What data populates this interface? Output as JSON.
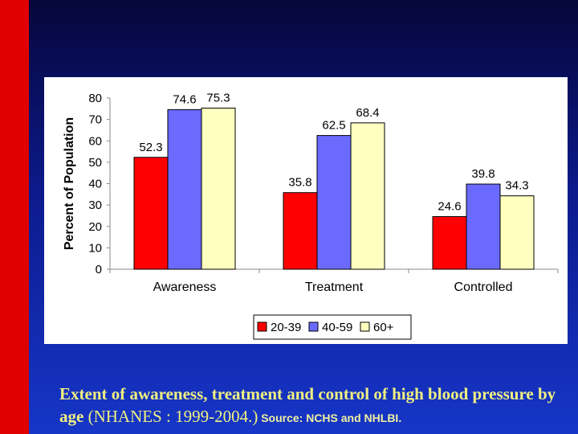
{
  "colors": {
    "background_top": "#06063a",
    "background_bottom": "#1636c8",
    "accent_bar": "#e00000",
    "caption_text": "#f0f080"
  },
  "chart_data": {
    "type": "bar",
    "title": "",
    "categories": [
      "Awareness",
      "Treatment",
      "Controlled"
    ],
    "series": [
      {
        "name": "20-39",
        "color": "#ff0000",
        "values": [
          52.3,
          35.8,
          24.6
        ]
      },
      {
        "name": "40-59",
        "color": "#6a6aff",
        "values": [
          74.6,
          62.5,
          39.8
        ]
      },
      {
        "name": "60+",
        "color": "#ffffc0",
        "values": [
          75.3,
          68.4,
          34.3
        ]
      }
    ],
    "xlabel": "",
    "ylabel": "Percent of Population",
    "ylim": [
      0,
      80
    ],
    "yticks": [
      0,
      10,
      20,
      30,
      40,
      50,
      60,
      70,
      80
    ],
    "grid": false,
    "legend": "bottom-center"
  },
  "caption": {
    "part1": "Extent of awareness, treatment and control of high blood pressure by age",
    "part2": " (NHANES : 1999-2004.)",
    "part3": " Source: NCHS and NHLBI."
  }
}
